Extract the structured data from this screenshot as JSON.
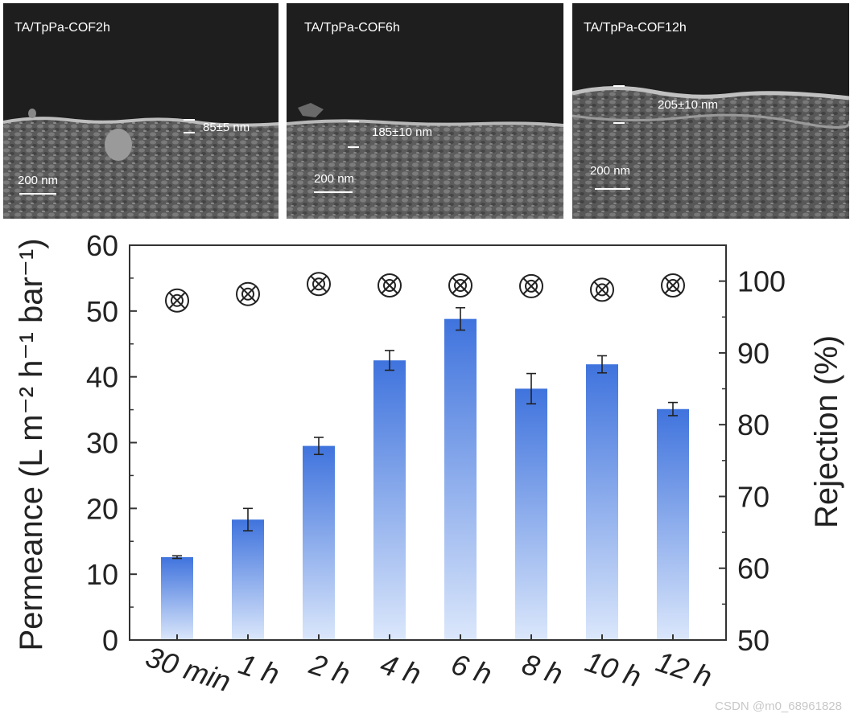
{
  "sem_images": [
    {
      "label": "TA/TpPa-COF2h",
      "thickness": "85±5 nm",
      "scale": "200 nm"
    },
    {
      "label": "TA/TpPa-COF6h",
      "thickness": "185±10 nm",
      "scale": "200 nm"
    },
    {
      "label": "TA/TpPa-COF12h",
      "thickness": "205±10 nm",
      "scale": "200 nm"
    }
  ],
  "chart_data": {
    "type": "bar",
    "categories": [
      "30 min",
      "1 h",
      "2 h",
      "4 h",
      "6 h",
      "8 h",
      "10 h",
      "12 h"
    ],
    "series": [
      {
        "name": "Permeance",
        "axis": "left",
        "values": [
          12.6,
          18.3,
          29.5,
          42.5,
          48.8,
          38.2,
          41.9,
          35.1
        ],
        "errors": [
          0.2,
          1.7,
          1.3,
          1.5,
          1.7,
          2.3,
          1.3,
          1.0
        ]
      },
      {
        "name": "Rejection",
        "axis": "right",
        "marker": "circled-x",
        "values": [
          97.3,
          98.2,
          99.6,
          99.4,
          99.4,
          99.3,
          98.8,
          99.4
        ]
      }
    ],
    "ylabel_left": "Permeance (L m⁻² h⁻¹ bar⁻¹)",
    "ylabel_right": "Rejection (%)",
    "ylim_left": [
      0,
      60
    ],
    "ylim_right": [
      50,
      105
    ],
    "yticks_left": [
      "0",
      "10",
      "20",
      "30",
      "40",
      "50",
      "60"
    ],
    "yticks_right": [
      "50",
      "60",
      "70",
      "80",
      "90",
      "100"
    ],
    "colors": {
      "bar_top": "#3f73dd",
      "bar_bottom": "#dbe7fb",
      "marker": "#222222"
    }
  },
  "watermark": "CSDN @m0_68961828"
}
